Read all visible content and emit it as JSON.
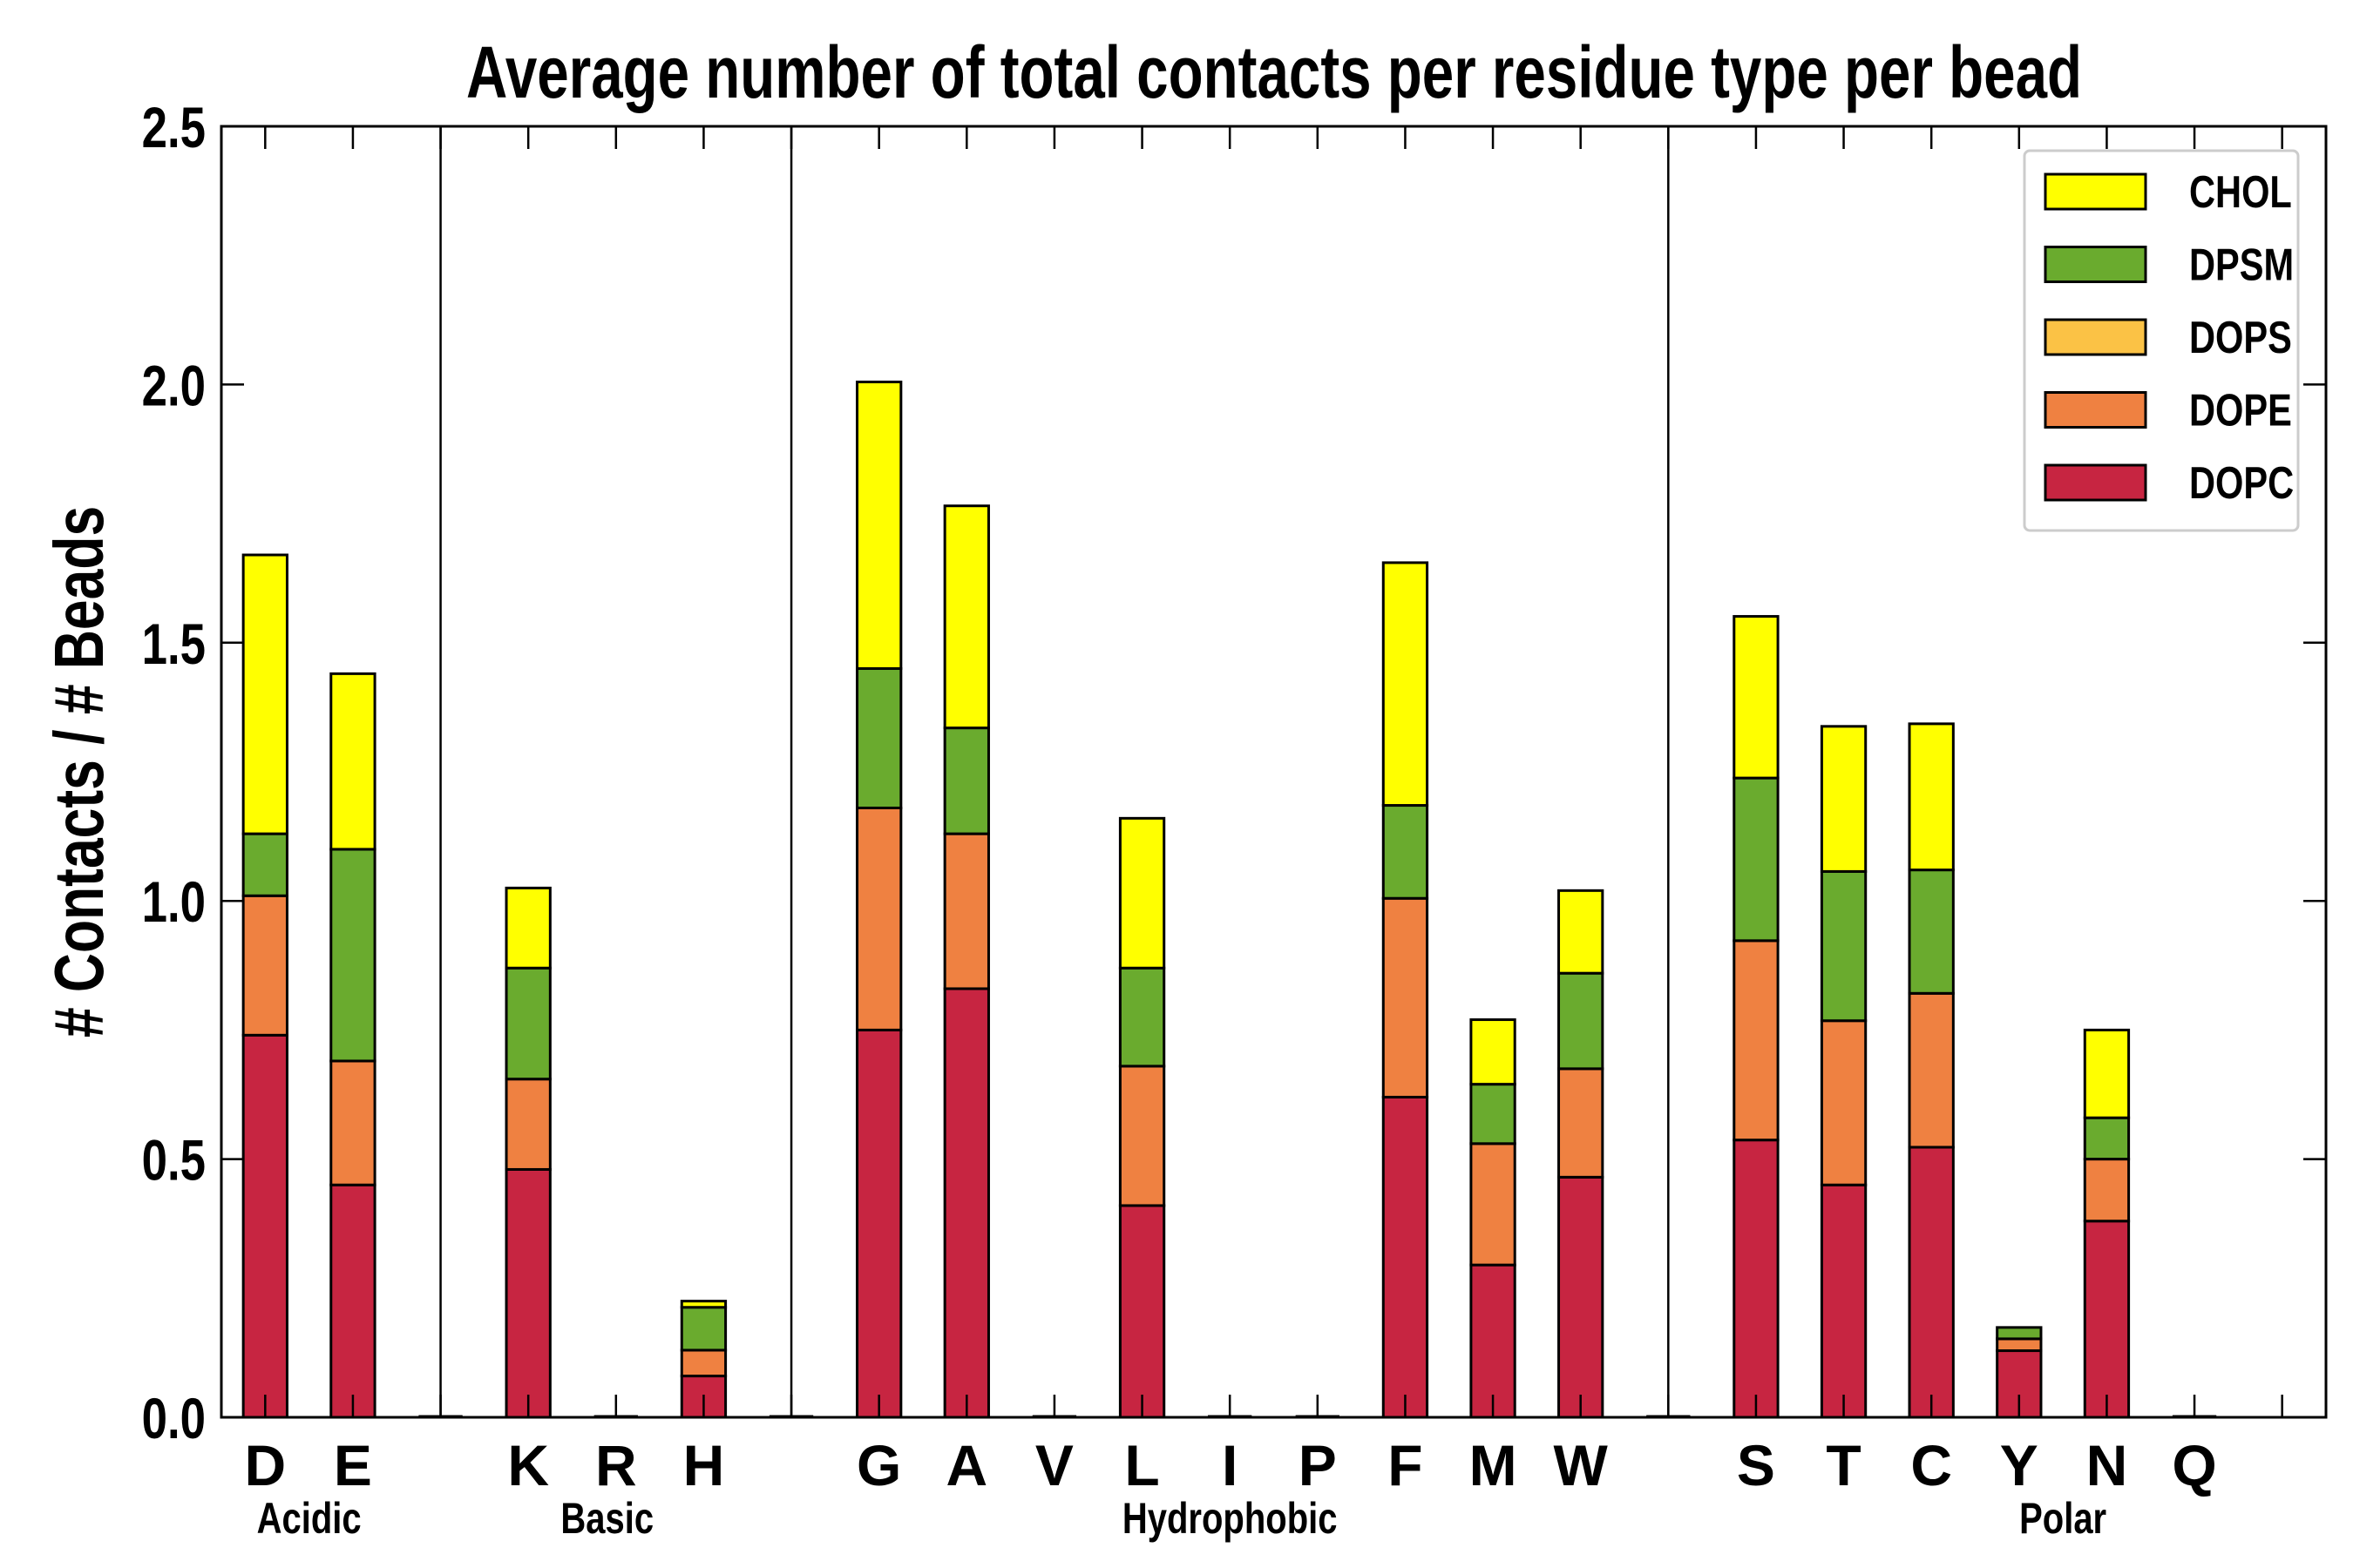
{
  "chart_data": {
    "type": "bar",
    "stacked": true,
    "title": "Average number of total contacts per residue type per bead",
    "xlabel": "",
    "ylabel": "# Contacts / # Beads",
    "ylim": [
      0,
      2.5
    ],
    "yticks": [
      "0.0",
      "0.5",
      "1.0",
      "1.5",
      "2.0",
      "2.5"
    ],
    "ytick_values": [
      0,
      0.5,
      1.0,
      1.5,
      2.0,
      2.5
    ],
    "legend_position": "top-right",
    "categories": [
      "D",
      "E",
      "",
      "K",
      "R",
      "H",
      "",
      "G",
      "A",
      "V",
      "L",
      "I",
      "P",
      "F",
      "M",
      "W",
      "",
      "S",
      "T",
      "C",
      "Y",
      "N",
      "Q"
    ],
    "groups": [
      {
        "label": "Acidic",
        "center": 0.5
      },
      {
        "label": "Basic",
        "center": 3.9
      },
      {
        "label": "Hydrophobic",
        "center": 11
      },
      {
        "label": "Polar",
        "center": 20.5
      }
    ],
    "separators": [
      2,
      6,
      16
    ],
    "series": [
      {
        "name": "DOPC",
        "color": "#c72541",
        "values": [
          0.74,
          0.45,
          0,
          0.48,
          0,
          0.08,
          0,
          0.75,
          0.83,
          0,
          0.41,
          0,
          0,
          0.62,
          0.295,
          0.465,
          0,
          0.537,
          0.45,
          0.523,
          0.129,
          0.38,
          0
        ]
      },
      {
        "name": "DOPE",
        "color": "#ef8141",
        "values": [
          0.27,
          0.24,
          0,
          0.175,
          0,
          0.05,
          0,
          0.43,
          0.3,
          0,
          0.27,
          0,
          0,
          0.385,
          0.235,
          0.21,
          0,
          0.386,
          0.318,
          0.298,
          0.023,
          0.12,
          0
        ]
      },
      {
        "name": "DOPS",
        "color": "#fbc245",
        "values": [
          0,
          0,
          0,
          0,
          0,
          0,
          0,
          0,
          0,
          0,
          0,
          0,
          0,
          0,
          0,
          0,
          0,
          0,
          0,
          0,
          0,
          0,
          0
        ]
      },
      {
        "name": "DPSM",
        "color": "#6aab2e",
        "values": [
          0.12,
          0.41,
          0,
          0.215,
          0,
          0.083,
          0,
          0.27,
          0.205,
          0,
          0.19,
          0,
          0,
          0.18,
          0.115,
          0.185,
          0,
          0.315,
          0.289,
          0.239,
          0.022,
          0.08,
          0
        ]
      },
      {
        "name": "CHOL",
        "color": "#ffff00",
        "values": [
          0.54,
          0.34,
          0,
          0.155,
          0,
          0.012,
          0,
          0.555,
          0.43,
          0,
          0.29,
          0,
          0,
          0.47,
          0.125,
          0.16,
          0,
          0.313,
          0.281,
          0.283,
          0,
          0.17,
          0
        ]
      }
    ],
    "legend_order": [
      "CHOL",
      "DPSM",
      "DOPS",
      "DOPE",
      "DOPC"
    ]
  }
}
